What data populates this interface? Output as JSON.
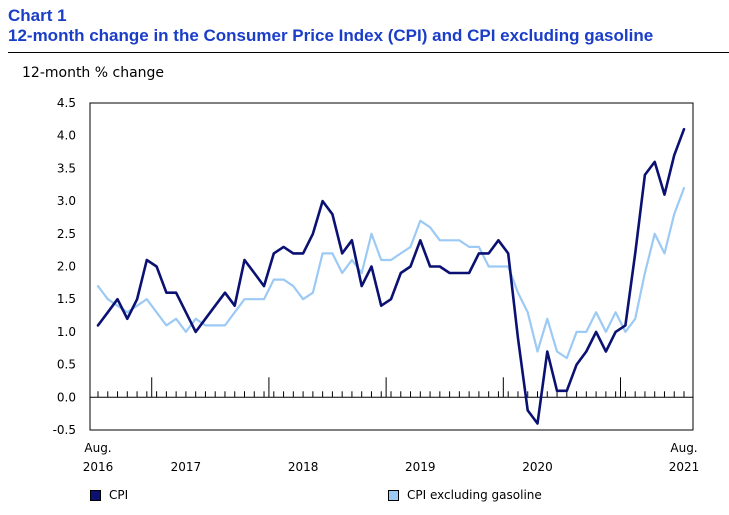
{
  "chart_number": "Chart 1",
  "chart_title": "12-month change in the Consumer Price Index (CPI) and CPI excluding gasoline",
  "chart_data": {
    "type": "line",
    "title": "12-month change in the Consumer Price Index (CPI) and CPI excluding gasoline",
    "ylabel": "12-month % change",
    "xlabel": "",
    "ylim": [
      -0.5,
      4.5
    ],
    "yticks": [
      "-0.5",
      "0.0",
      "0.5",
      "1.0",
      "1.5",
      "2.0",
      "2.5",
      "3.0",
      "3.5",
      "4.0",
      "4.5"
    ],
    "x_start": "Aug. 2016",
    "x_end": "Aug. 2021",
    "x_tick_labels": [
      {
        "month_index": 0,
        "line1": "Aug.",
        "line2": "2016"
      },
      {
        "month_index": 9,
        "line1": "",
        "line2": "2017"
      },
      {
        "month_index": 21,
        "line1": "",
        "line2": "2018"
      },
      {
        "month_index": 33,
        "line1": "",
        "line2": "2019"
      },
      {
        "month_index": 45,
        "line1": "",
        "line2": "2020"
      },
      {
        "month_index": 60,
        "line1": "Aug.",
        "line2": "2021"
      }
    ],
    "year_boundaries": [
      5,
      17,
      29,
      41,
      53
    ],
    "series": [
      {
        "name": "CPI",
        "color": "#0a1172",
        "values": [
          1.1,
          1.3,
          1.5,
          1.2,
          1.5,
          2.1,
          2.0,
          1.6,
          1.6,
          1.3,
          1.0,
          1.2,
          1.4,
          1.6,
          1.4,
          2.1,
          1.9,
          1.7,
          2.2,
          2.3,
          2.2,
          2.2,
          2.5,
          3.0,
          2.8,
          2.2,
          2.4,
          1.7,
          2.0,
          1.4,
          1.5,
          1.9,
          2.0,
          2.4,
          2.0,
          2.0,
          1.9,
          1.9,
          1.9,
          2.2,
          2.2,
          2.4,
          2.2,
          0.9,
          -0.2,
          -0.4,
          0.7,
          0.1,
          0.1,
          0.5,
          0.7,
          1.0,
          0.7,
          1.0,
          1.1,
          2.2,
          3.4,
          3.6,
          3.1,
          3.7,
          4.1
        ]
      },
      {
        "name": "CPI excluding gasoline",
        "color": "#9ccaf5",
        "values": [
          1.7,
          1.5,
          1.4,
          1.3,
          1.4,
          1.5,
          1.3,
          1.1,
          1.2,
          1.0,
          1.2,
          1.1,
          1.1,
          1.1,
          1.3,
          1.5,
          1.5,
          1.5,
          1.8,
          1.8,
          1.7,
          1.5,
          1.6,
          2.2,
          2.2,
          1.9,
          2.1,
          1.9,
          2.5,
          2.1,
          2.1,
          2.2,
          2.3,
          2.7,
          2.6,
          2.4,
          2.4,
          2.4,
          2.3,
          2.3,
          2.0,
          2.0,
          2.0,
          1.6,
          1.3,
          0.7,
          1.2,
          0.7,
          0.6,
          1.0,
          1.0,
          1.3,
          1.0,
          1.3,
          1.0,
          1.2,
          1.9,
          2.5,
          2.2,
          2.8,
          3.2
        ]
      }
    ],
    "legend": [
      {
        "label": "CPI",
        "color": "#0a1172"
      },
      {
        "label": "CPI excluding gasoline",
        "color": "#9ccaf5"
      }
    ],
    "legend_position": "bottom"
  }
}
